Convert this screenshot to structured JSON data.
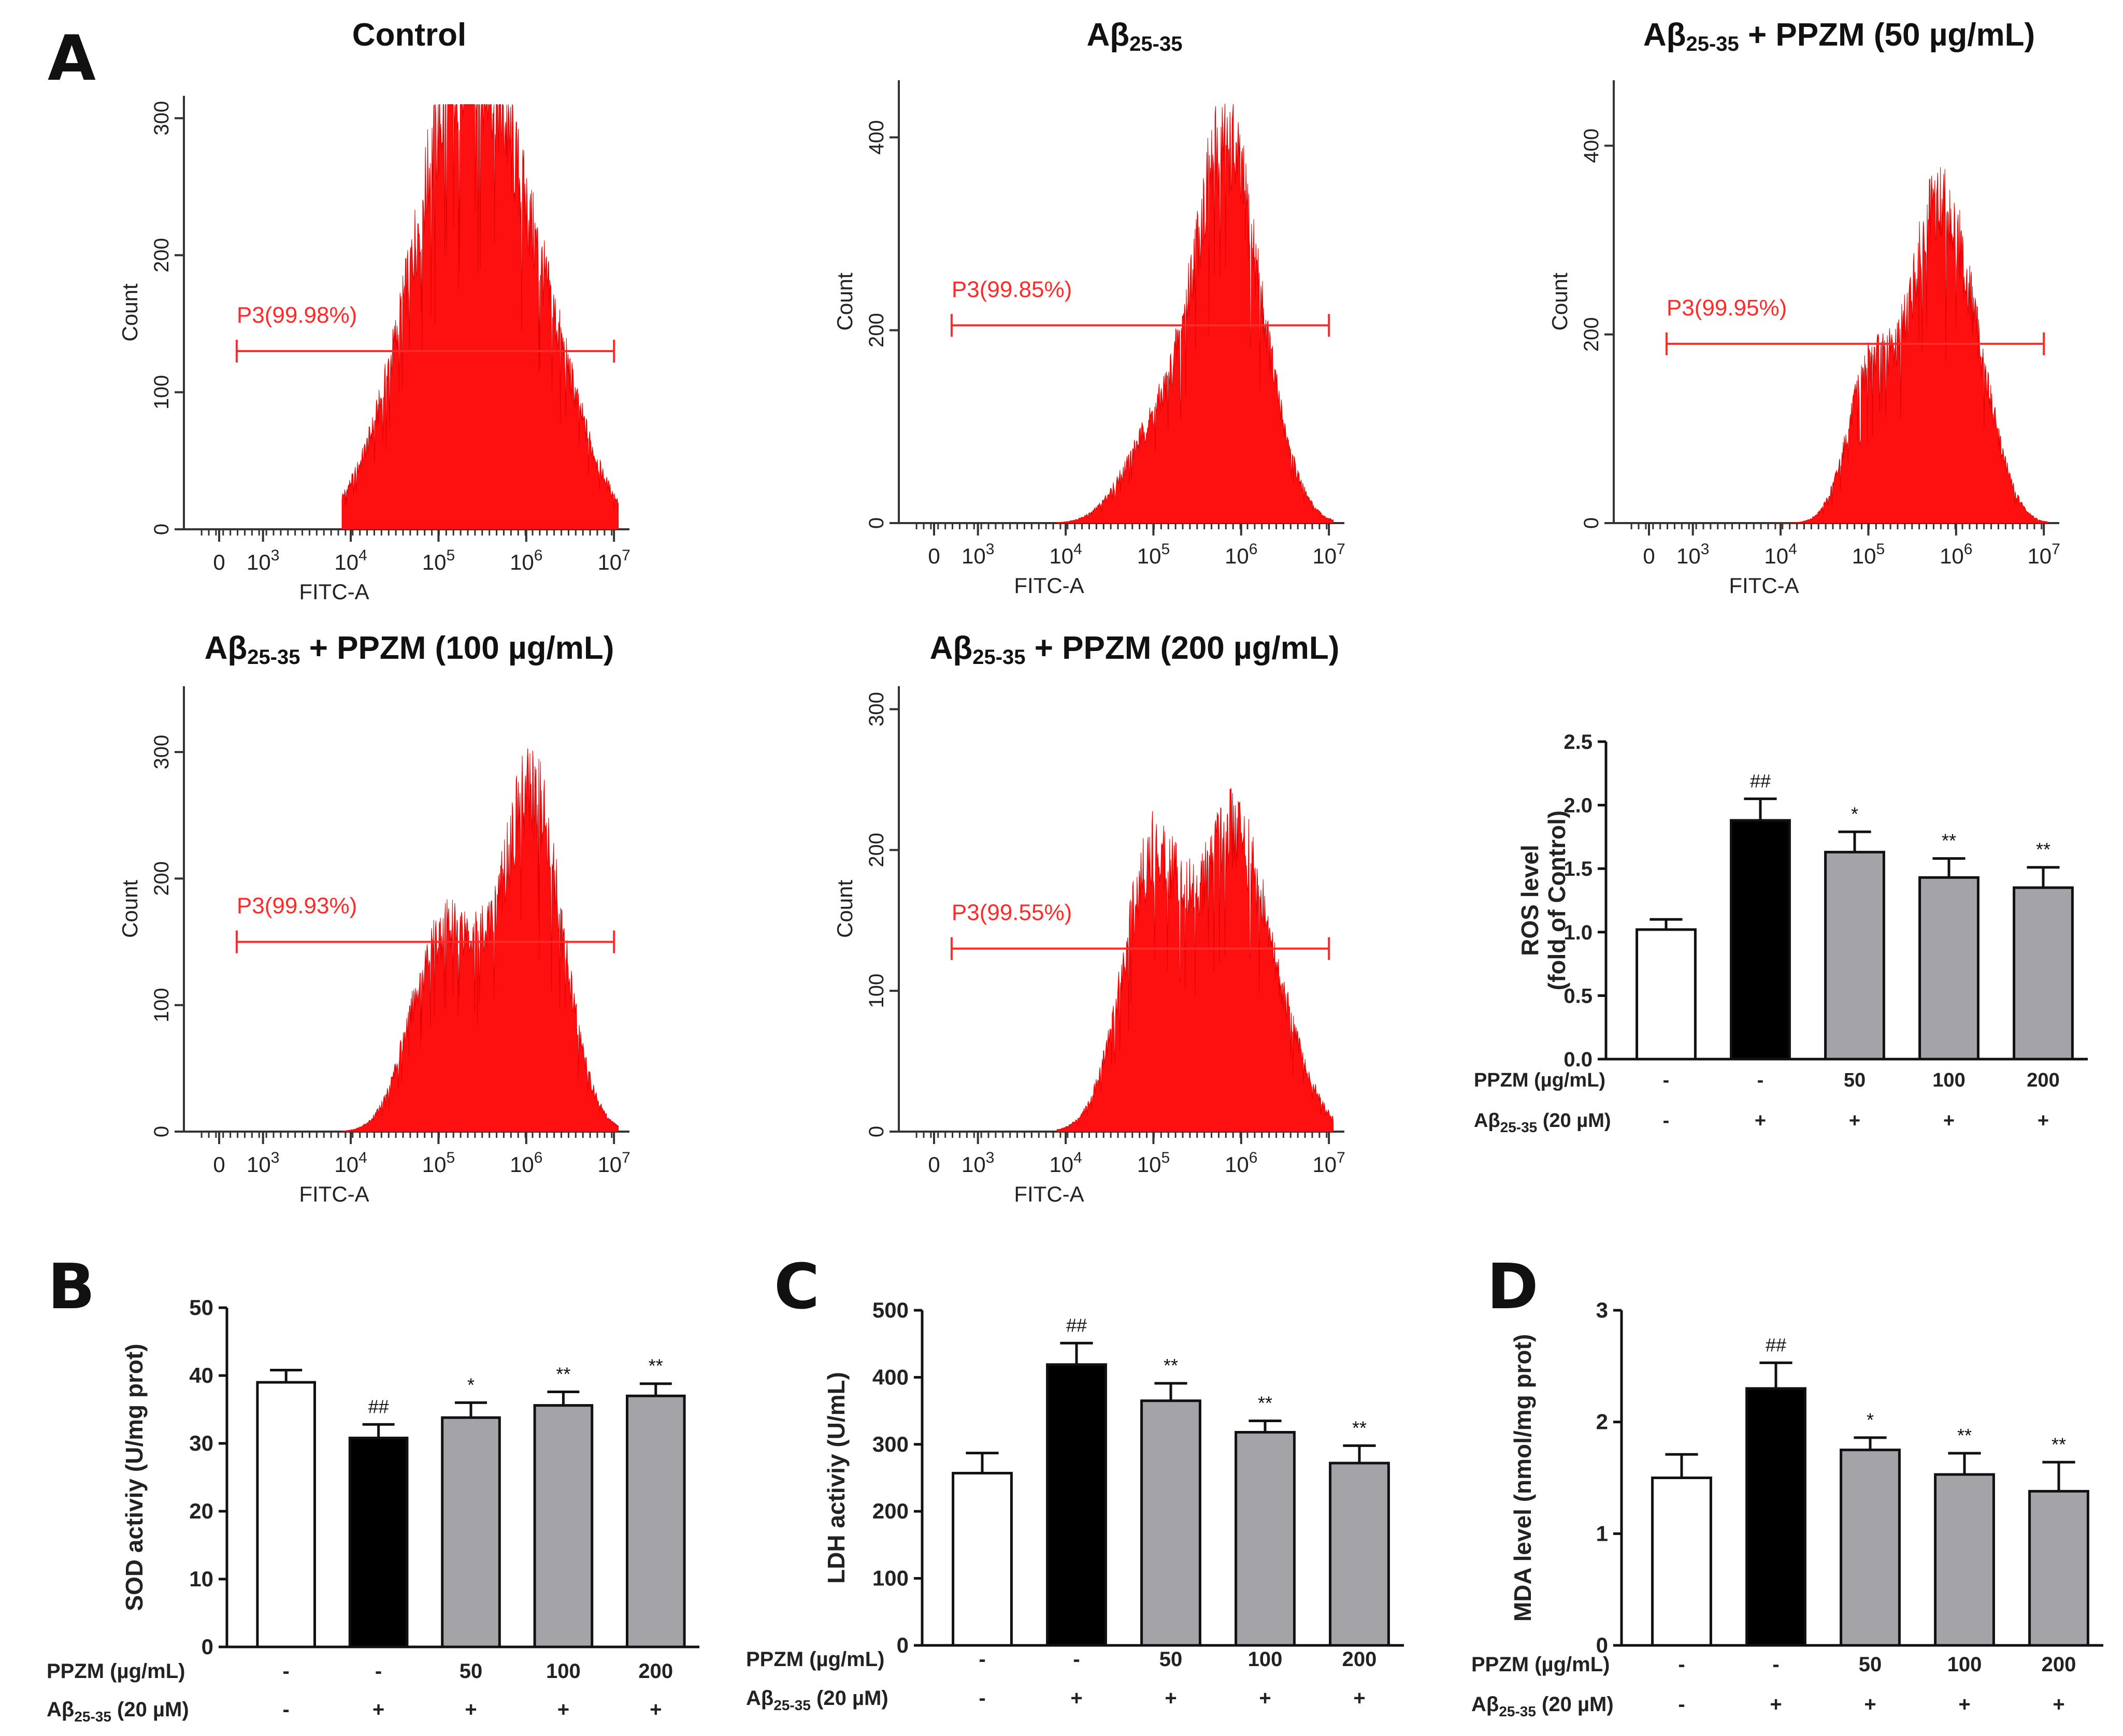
{
  "panels": {
    "a": "A",
    "b": "B",
    "c": "C",
    "d": "D"
  },
  "colors": {
    "histogram": "#ff1010",
    "gate": "#ff2a2a",
    "black_bar": "#000000",
    "gray_bar": "#a3a3a8",
    "white_bar": "#ffffff"
  },
  "treatment_labels": {
    "ppzm_row": "PPZM (µg/mL)",
    "abeta_prefix": "Aβ",
    "abeta_sub": "25-35",
    "abeta_suffix": " (20 µM)",
    "ppzm_values": [
      "-",
      "-",
      "50",
      "100",
      "200"
    ],
    "abeta_values": [
      "-",
      "+",
      "+",
      "+",
      "+"
    ]
  },
  "chart_data": [
    {
      "type": "histogram",
      "panel": "A",
      "title": {
        "main": "Control",
        "sub": "",
        "rest": ""
      },
      "xlabel": "FITC-A",
      "ylabel": "Count",
      "xticks": [
        "0",
        "10^3",
        "10^4",
        "10^5",
        "10^6",
        "10^7"
      ],
      "ylim": [
        0,
        310
      ],
      "yticks": [
        0,
        100,
        200,
        300
      ],
      "gate": {
        "label": "P3(99.98%)",
        "range": [
          2.7,
          7.0
        ],
        "level": 130
      },
      "peaks": [
        [
          4.8,
          120,
          0.5
        ],
        [
          5.2,
          180,
          0.4
        ],
        [
          6.0,
          190,
          0.5
        ],
        [
          5.6,
          60,
          0.3
        ]
      ]
    },
    {
      "type": "histogram",
      "panel": "A",
      "title": {
        "main": "Aβ",
        "sub": "25-35",
        "rest": ""
      },
      "xlabel": "FITC-A",
      "ylabel": "Count",
      "xticks": [
        "0",
        "10^3",
        "10^4",
        "10^5",
        "10^6",
        "10^7"
      ],
      "ylim": [
        0,
        450
      ],
      "yticks": [
        0,
        200,
        400
      ],
      "gate": {
        "label": "P3(99.85%)",
        "range": [
          2.7,
          7.0
        ],
        "level": 205
      },
      "peaks": [
        [
          5.0,
          90,
          0.35
        ],
        [
          5.8,
          390,
          0.35
        ],
        [
          6.3,
          60,
          0.3
        ]
      ]
    },
    {
      "type": "histogram",
      "panel": "A",
      "title": {
        "main": "Aβ",
        "sub": "25-35",
        "rest": " + PPZM (50 µg/mL)"
      },
      "xlabel": "FITC-A",
      "ylabel": "Count",
      "xticks": [
        "0",
        "10^3",
        "10^4",
        "10^5",
        "10^6",
        "10^7"
      ],
      "ylim": [
        0,
        460
      ],
      "yticks": [
        0,
        200,
        400
      ],
      "gate": {
        "label": "P3(99.95%)",
        "range": [
          2.7,
          7.0
        ],
        "level": 190
      },
      "peaks": [
        [
          5.0,
          150,
          0.25
        ],
        [
          5.8,
          340,
          0.35
        ],
        [
          6.3,
          60,
          0.25
        ]
      ]
    },
    {
      "type": "histogram",
      "panel": "A",
      "title": {
        "main": "Aβ",
        "sub": "25-35",
        "rest": " + PPZM (100 µg/mL)"
      },
      "xlabel": "FITC-A",
      "ylabel": "Count",
      "xticks": [
        "0",
        "10^3",
        "10^4",
        "10^5",
        "10^6",
        "10^7"
      ],
      "ylim": [
        0,
        345
      ],
      "yticks": [
        0,
        100,
        200,
        300
      ],
      "gate": {
        "label": "P3(99.93%)",
        "range": [
          2.7,
          7.0
        ],
        "level": 150
      },
      "peaks": [
        [
          4.9,
          120,
          0.3
        ],
        [
          5.3,
          90,
          0.25
        ],
        [
          6.05,
          280,
          0.35
        ]
      ]
    },
    {
      "type": "histogram",
      "panel": "A",
      "title": {
        "main": "Aβ",
        "sub": "25-35",
        "rest": " + PPZM (200 µg/mL)"
      },
      "xlabel": "FITC-A",
      "ylabel": "Count",
      "xticks": [
        "0",
        "10^3",
        "10^4",
        "10^5",
        "10^6",
        "10^7"
      ],
      "ylim": [
        0,
        310
      ],
      "yticks": [
        0,
        100,
        200,
        300
      ],
      "gate": {
        "label": "P3(99.55%)",
        "range": [
          2.7,
          7.0
        ],
        "level": 130
      },
      "peaks": [
        [
          5.0,
          200,
          0.35
        ],
        [
          5.9,
          210,
          0.35
        ],
        [
          6.5,
          50,
          0.3
        ]
      ]
    },
    {
      "type": "bar",
      "panel": "A",
      "ylabel": [
        "ROS level",
        "(fold of Control)"
      ],
      "ylim": [
        0,
        2.5
      ],
      "yticks": [
        "0.0",
        "0.5",
        "1.0",
        "1.5",
        "2.0",
        "2.5"
      ],
      "values": [
        1.02,
        1.88,
        1.63,
        1.43,
        1.35
      ],
      "errors": [
        0.08,
        0.17,
        0.16,
        0.15,
        0.16
      ],
      "annotations": [
        "",
        "##",
        "*",
        "**",
        "**"
      ]
    },
    {
      "type": "bar",
      "panel": "B",
      "ylabel": [
        "SOD activiy (U/mg prot)"
      ],
      "ylim": [
        0,
        50
      ],
      "yticks": [
        "0",
        "10",
        "20",
        "30",
        "40",
        "50"
      ],
      "values": [
        39.0,
        30.8,
        33.8,
        35.6,
        37.0
      ],
      "errors": [
        1.8,
        2.0,
        2.2,
        2.0,
        1.8
      ],
      "annotations": [
        "",
        "##",
        "*",
        "**",
        "**"
      ]
    },
    {
      "type": "bar",
      "panel": "C",
      "ylabel": [
        "LDH activiy (U/mL)"
      ],
      "ylim": [
        0,
        500
      ],
      "yticks": [
        "0",
        "100",
        "200",
        "300",
        "400",
        "500"
      ],
      "values": [
        257,
        419,
        365,
        318,
        272
      ],
      "errors": [
        30,
        32,
        26,
        17,
        26
      ],
      "annotations": [
        "",
        "##",
        "**",
        "**",
        "**"
      ]
    },
    {
      "type": "bar",
      "panel": "D",
      "ylabel": [
        "MDA level (nmol/mg prot)"
      ],
      "ylim": [
        0,
        3
      ],
      "yticks": [
        "0",
        "1",
        "2",
        "3"
      ],
      "values": [
        1.5,
        2.3,
        1.75,
        1.53,
        1.38
      ],
      "errors": [
        0.21,
        0.23,
        0.11,
        0.19,
        0.26
      ],
      "annotations": [
        "",
        "##",
        "*",
        "**",
        "**"
      ]
    }
  ]
}
